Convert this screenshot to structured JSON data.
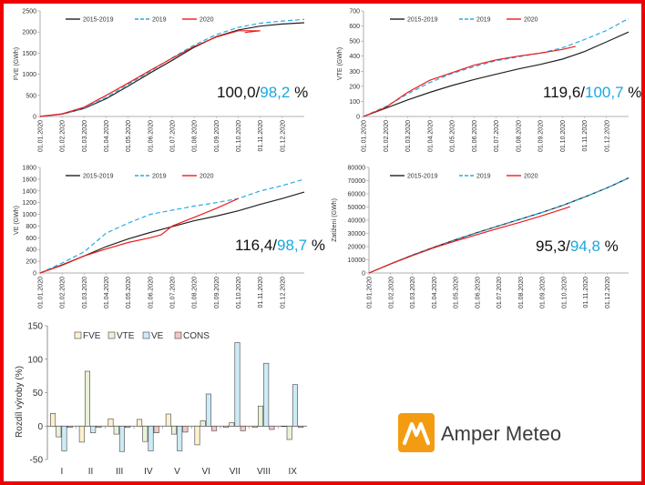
{
  "colors": {
    "s2015": "#222222",
    "s2019": "#29abe2",
    "s2020": "#ee1c1c",
    "frame": "#ee0000",
    "ratio_second": "#1aa7df"
  },
  "months": [
    "01.01.2020",
    "01.02.2020",
    "01.03.2020",
    "01.04.2020",
    "01.05.2020",
    "01.06.2020",
    "01.07.2020",
    "01.08.2020",
    "01.09.2020",
    "01.10.2020",
    "01.11.2020",
    "01.12.2020"
  ],
  "legend": [
    "2015-2019",
    "2019",
    "2020"
  ],
  "chart_data": [
    {
      "type": "line",
      "ylabel": "FVE (GWh)",
      "ylim": [
        0,
        2500
      ],
      "yticks": [
        0,
        500,
        1000,
        1500,
        2000,
        2500
      ],
      "ratio_first": "100,0/",
      "ratio_second": "98,2",
      "ratio_unit": " %",
      "series": [
        {
          "name": "2015-2019",
          "t": [
            0,
            1,
            2,
            3,
            4,
            5,
            6,
            7,
            8,
            9,
            10,
            11,
            12
          ],
          "values": [
            0,
            55,
            190,
            420,
            720,
            1030,
            1330,
            1640,
            1890,
            2050,
            2140,
            2190,
            2220
          ]
        },
        {
          "name": "2019",
          "t": [
            0,
            1,
            2,
            3,
            4,
            5,
            6,
            7,
            8,
            9,
            10,
            11,
            12
          ],
          "values": [
            0,
            58,
            200,
            450,
            760,
            1070,
            1390,
            1690,
            1940,
            2110,
            2210,
            2260,
            2300
          ]
        },
        {
          "name": "2020",
          "t": [
            0,
            1,
            2,
            3,
            4,
            5,
            6,
            7,
            8,
            9,
            10,
            9.3
          ],
          "values": [
            0,
            62,
            220,
            500,
            790,
            1090,
            1380,
            1660,
            1880,
            2030,
            2030,
            1990
          ]
        }
      ]
    },
    {
      "type": "line",
      "ylabel": "VTE (GWh)",
      "ylim": [
        0,
        700
      ],
      "yticks": [
        0,
        100,
        200,
        300,
        400,
        500,
        600,
        700
      ],
      "ratio_first": "119,6/",
      "ratio_second": "100,7",
      "ratio_unit": " %",
      "series": [
        {
          "name": "2015-2019",
          "t": [
            0,
            1,
            2,
            3,
            4,
            5,
            6,
            7,
            8,
            9,
            10,
            11,
            12
          ],
          "values": [
            0,
            55,
            110,
            160,
            205,
            245,
            280,
            315,
            345,
            380,
            430,
            495,
            560
          ]
        },
        {
          "name": "2019",
          "t": [
            0,
            1,
            2,
            3,
            4,
            5,
            6,
            7,
            8,
            9,
            10,
            11,
            12
          ],
          "values": [
            0,
            65,
            150,
            225,
            285,
            330,
            370,
            395,
            420,
            455,
            510,
            570,
            650
          ]
        },
        {
          "name": "2020",
          "t": [
            0,
            1,
            2,
            3,
            4,
            5,
            6,
            7,
            8,
            9,
            9.6
          ],
          "values": [
            0,
            60,
            160,
            240,
            290,
            340,
            375,
            400,
            420,
            445,
            465
          ]
        }
      ]
    },
    {
      "type": "line",
      "ylabel": "VE (GWh)",
      "ylim": [
        0,
        1800
      ],
      "yticks": [
        0,
        200,
        400,
        600,
        800,
        1000,
        1200,
        1400,
        1600,
        1800
      ],
      "ratio_first": "116,4/",
      "ratio_second": "98,7",
      "ratio_unit": " %",
      "series": [
        {
          "name": "2015-2019",
          "t": [
            0,
            1,
            2,
            3,
            4,
            5,
            6,
            7,
            8,
            9,
            10,
            11,
            12
          ],
          "values": [
            0,
            140,
            290,
            450,
            580,
            690,
            790,
            890,
            970,
            1060,
            1170,
            1270,
            1380
          ]
        },
        {
          "name": "2019",
          "t": [
            0,
            1,
            2,
            3,
            4,
            5,
            6,
            7,
            8,
            9,
            10,
            11,
            12
          ],
          "values": [
            0,
            170,
            360,
            680,
            850,
            1000,
            1070,
            1140,
            1200,
            1270,
            1400,
            1490,
            1600
          ]
        },
        {
          "name": "2020",
          "t": [
            0,
            1,
            2,
            3,
            4,
            5,
            5.5,
            6,
            7,
            8,
            9
          ],
          "values": [
            0,
            130,
            290,
            410,
            520,
            600,
            650,
            800,
            950,
            1100,
            1270
          ]
        }
      ]
    },
    {
      "type": "line",
      "ylabel": "Zatížení (GWh)",
      "ylim": [
        0,
        80000
      ],
      "yticks": [
        0,
        10000,
        20000,
        30000,
        40000,
        50000,
        60000,
        70000,
        80000
      ],
      "ratio_first": "95,3/",
      "ratio_second": "94,8",
      "ratio_unit": " %",
      "series": [
        {
          "name": "2015-2019",
          "t": [
            0,
            1,
            2,
            3,
            4,
            5,
            6,
            7,
            8,
            9,
            10,
            11,
            12
          ],
          "values": [
            0,
            7000,
            13500,
            19500,
            25200,
            30600,
            35700,
            40800,
            45900,
            51500,
            57800,
            64500,
            72000
          ]
        },
        {
          "name": "2019",
          "t": [
            0,
            1,
            2,
            3,
            4,
            5,
            6,
            7,
            8,
            9,
            10,
            11,
            12
          ],
          "values": [
            0,
            6900,
            13300,
            19300,
            25000,
            30400,
            35600,
            40700,
            45800,
            51400,
            57700,
            64400,
            71900
          ]
        },
        {
          "name": "2020",
          "t": [
            0,
            1,
            2,
            3,
            4,
            5,
            6,
            7,
            8,
            9,
            9.3
          ],
          "values": [
            0,
            6800,
            13100,
            19100,
            24300,
            29100,
            33900,
            38500,
            43400,
            48700,
            50300
          ]
        }
      ]
    },
    {
      "type": "bar",
      "ylabel": "Rozdíl výroby (%)",
      "ylim": [
        -50,
        150
      ],
      "yticks": [
        -50,
        0,
        50,
        100,
        150
      ],
      "categories": [
        "I",
        "II",
        "III",
        "IV",
        "V",
        "VI",
        "VII",
        "VIII",
        "IX"
      ],
      "series": [
        {
          "name": "FVE",
          "color": "#fdf0cc",
          "values": [
            19,
            -24,
            11,
            10,
            18,
            -28,
            -2,
            -2,
            0
          ]
        },
        {
          "name": "VTE",
          "color": "#eaf2d7",
          "values": [
            -16,
            82,
            -12,
            -23,
            -12,
            8,
            5,
            30,
            -20
          ]
        },
        {
          "name": "VE",
          "color": "#cdebf6",
          "values": [
            -37,
            -10,
            -38,
            -37,
            -37,
            48,
            125,
            94,
            62
          ]
        },
        {
          "name": "CONS",
          "color": "#f4c7c7",
          "values": [
            -2,
            -2,
            -2,
            -10,
            -9,
            -7,
            -7,
            -5,
            -2
          ]
        }
      ]
    }
  ],
  "logo": {
    "text": "Amper Meteo",
    "color": "#f39c12"
  }
}
